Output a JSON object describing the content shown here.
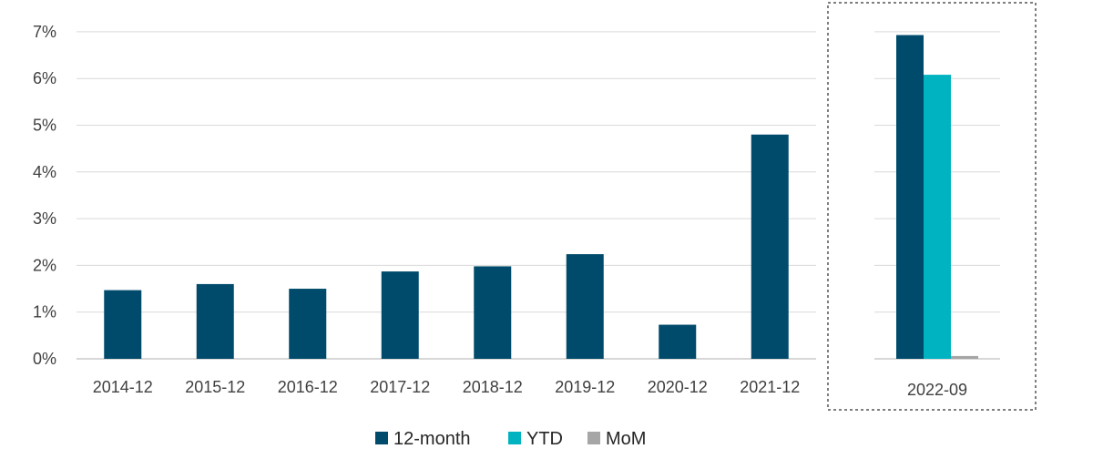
{
  "chart_data": {
    "type": "bar",
    "ylim": [
      0,
      7
    ],
    "y_ticks": [
      "0%",
      "1%",
      "2%",
      "3%",
      "4%",
      "5%",
      "6%",
      "7%"
    ],
    "grid": true,
    "legend_position": "bottom",
    "panels": [
      {
        "categories": [
          "2014-12",
          "2015-12",
          "2016-12",
          "2017-12",
          "2018-12",
          "2019-12",
          "2020-12",
          "2021-12"
        ],
        "series": [
          {
            "name": "12-month",
            "color": "#004b6b",
            "values": [
              1.47,
              1.6,
              1.5,
              1.87,
              1.98,
              2.24,
              0.73,
              4.8
            ]
          }
        ]
      },
      {
        "categories": [
          "2022-09"
        ],
        "highlighted": true,
        "series": [
          {
            "name": "12-month",
            "color": "#004b6b",
            "values": [
              6.93
            ]
          },
          {
            "name": "YTD",
            "color": "#00b3c1",
            "values": [
              6.08
            ]
          },
          {
            "name": "MoM",
            "color": "#a6a6a6",
            "values": [
              0.06
            ]
          }
        ]
      }
    ]
  },
  "legend": [
    {
      "name": "12-month",
      "color": "#004b6b"
    },
    {
      "name": "YTD",
      "color": "#00b3c1"
    },
    {
      "name": "MoM",
      "color": "#a6a6a6"
    }
  ]
}
